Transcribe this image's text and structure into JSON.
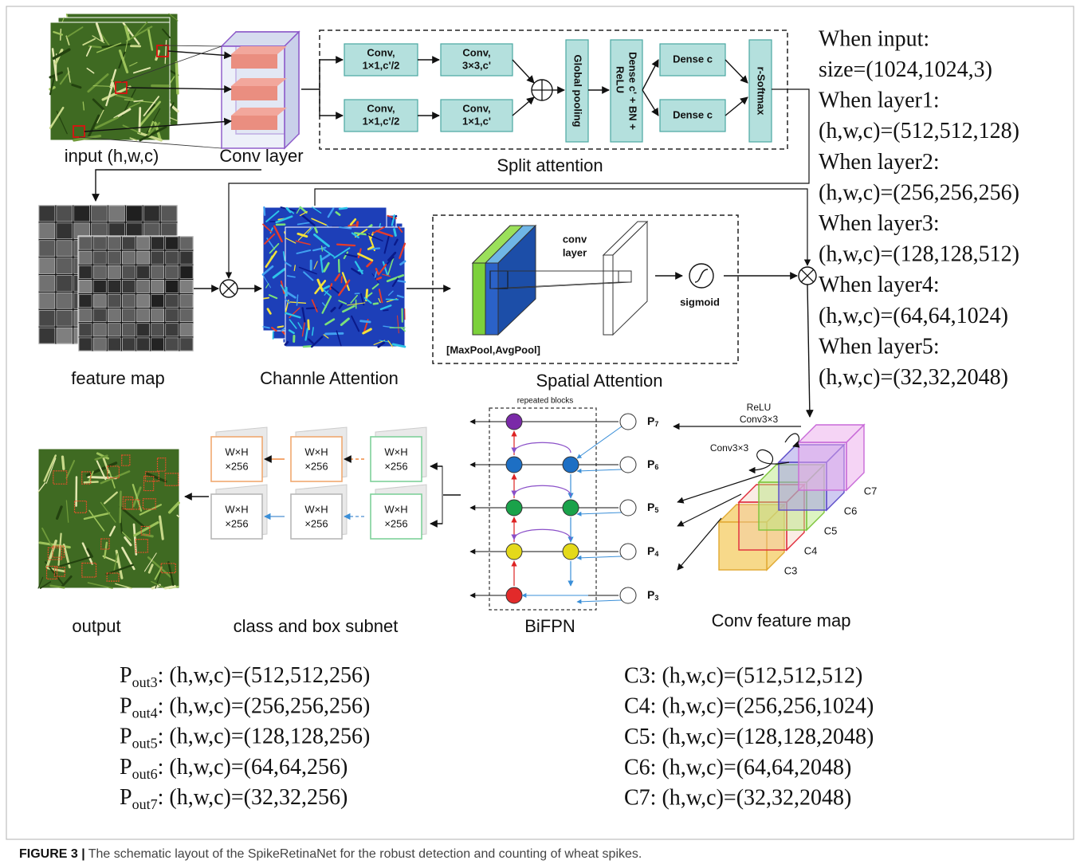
{
  "input_block": {
    "label": "input (h,w,c)"
  },
  "conv_layer": {
    "label": "Conv layer"
  },
  "split_attention": {
    "title": "Split attention",
    "conv_a1": [
      "Conv,",
      "1×1,c'/2"
    ],
    "conv_a2": [
      "Conv,",
      "3×3,c'"
    ],
    "conv_b1": [
      "Conv,",
      "1×1,c'/2"
    ],
    "conv_b2": [
      "Conv,",
      "1×1,c'"
    ],
    "global_pooling": "Global pooling",
    "dense_bn_relu": [
      "Dense c' + BN +",
      "ReLU"
    ],
    "dense_c1": "Dense c",
    "dense_c2": "Dense c",
    "r_softmax": "r-Softmax"
  },
  "size_notes": [
    "When input:",
    "size=(1024,1024,3)",
    "When layer1:",
    "(h,w,c)=(512,512,128)",
    "When layer2:",
    "(h,w,c)=(256,256,256)",
    "When layer3:",
    "(h,w,c)=(128,128,512)",
    "When layer4:",
    "(h,w,c)=(64,64,1024)",
    "When layer5:",
    "(h,w,c)=(32,32,2048)"
  ],
  "feature_map": {
    "label": "feature map"
  },
  "channel_attention": {
    "label": "Channle Attention"
  },
  "spatial_attention": {
    "title": "Spatial Attention",
    "conv_layer": [
      "conv",
      "layer"
    ],
    "sigmoid": "sigmoid",
    "pool": "[MaxPool,AvgPool]"
  },
  "output": {
    "label": "output"
  },
  "subnet": {
    "label": "class and box subnet",
    "cards": [
      [
        "W×H",
        "×256"
      ],
      [
        "W×H",
        "×256"
      ],
      [
        "W×H",
        "×256"
      ],
      [
        "W×H",
        "×256"
      ],
      [
        "W×H",
        "×256"
      ],
      [
        "W×H",
        "×256"
      ]
    ]
  },
  "bifpn": {
    "label": "BiFPN",
    "repeated": "repeated blocks",
    "levels": [
      {
        "symbol": "P",
        "subscript": "7"
      },
      {
        "symbol": "P",
        "subscript": "6"
      },
      {
        "symbol": "P",
        "subscript": "5"
      },
      {
        "symbol": "P",
        "subscript": "4"
      },
      {
        "symbol": "P",
        "subscript": "3"
      }
    ]
  },
  "conv_feature_map": {
    "label": "Conv feature map",
    "cubes": [
      "C3",
      "C4",
      "C5",
      "C6",
      "C7"
    ],
    "relu_conv": [
      "ReLU",
      "Conv3×3"
    ],
    "conv": "Conv3×3"
  },
  "p_outputs": [
    {
      "symbol": "P",
      "subscript": "out3",
      "text": ": (h,w,c)=(512,512,256)"
    },
    {
      "symbol": "P",
      "subscript": "out4",
      "text": ": (h,w,c)=(256,256,256)"
    },
    {
      "symbol": "P",
      "subscript": "out5",
      "text": ": (h,w,c)=(128,128,256)"
    },
    {
      "symbol": "P",
      "subscript": "out6",
      "text": ": (h,w,c)=(64,64,256)"
    },
    {
      "symbol": "P",
      "subscript": "out7",
      "text": ": (h,w,c)=(32,32,256)"
    }
  ],
  "c_outputs": [
    "C3: (h,w,c)=(512,512,512)",
    "C4: (h,w,c)=(256,256,1024)",
    "C5: (h,w,c)=(128,128,2048)",
    "C6: (h,w,c)=(64,64,2048)",
    "C7: (h,w,c)=(32,32,2048)"
  ],
  "caption": {
    "label": "FIGURE 3 |",
    "text": "The schematic layout of the SpikeRetinaNet for the robust detection and counting of wheat spikes."
  }
}
